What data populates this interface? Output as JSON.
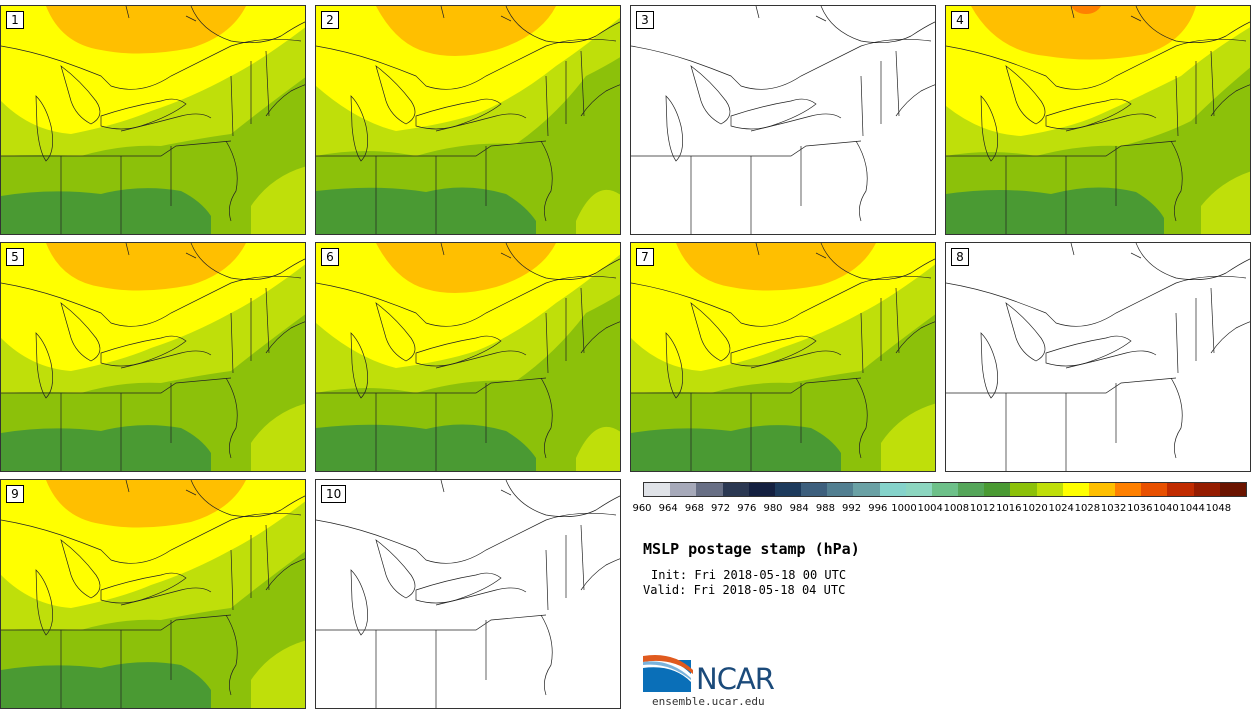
{
  "panels": [
    {
      "label": "1",
      "scheme": "a"
    },
    {
      "label": "2",
      "scheme": "b"
    },
    {
      "label": "3",
      "scheme": "blank"
    },
    {
      "label": "4",
      "scheme": "c"
    },
    {
      "label": "5",
      "scheme": "a"
    },
    {
      "label": "6",
      "scheme": "b"
    },
    {
      "label": "7",
      "scheme": "a"
    },
    {
      "label": "8",
      "scheme": "blank"
    },
    {
      "label": "9",
      "scheme": "a"
    },
    {
      "label": "10",
      "scheme": "blank"
    }
  ],
  "colorbar": {
    "colors": [
      "#e0e3e8",
      "#a6a9b9",
      "#686f85",
      "#2b3852",
      "#142040",
      "#1d3a5c",
      "#3d5f7d",
      "#527f91",
      "#6aa1a5",
      "#85d3cb",
      "#8cd6c0",
      "#6dc089",
      "#55a65a",
      "#4a9a33",
      "#8cc10a",
      "#bfdf0a",
      "#ffff00",
      "#ffbf00",
      "#ff8000",
      "#e85000",
      "#c02b00",
      "#951c00",
      "#6b1400"
    ],
    "ticks": [
      "960",
      "964",
      "968",
      "972",
      "976",
      "980",
      "984",
      "988",
      "992",
      "996",
      "1000",
      "1004",
      "1008",
      "1012",
      "1016",
      "1020",
      "1024",
      "1028",
      "1032",
      "1036",
      "1040",
      "1044",
      "1048"
    ]
  },
  "title": "MSLP postage stamp (hPa)",
  "init": "Init: Fri 2018-05-18 00 UTC",
  "valid": "Valid: Fri 2018-05-18 04 UTC",
  "logo": {
    "text": "NCAR",
    "url": "ensemble.ucar.edu"
  },
  "fill_colors": {
    "orange_dark": "#ff8000",
    "orange": "#ffbf00",
    "yellow": "#ffff00",
    "lime": "#bfdf0a",
    "green_light": "#8cc10a",
    "green_dark": "#4a9a33"
  }
}
